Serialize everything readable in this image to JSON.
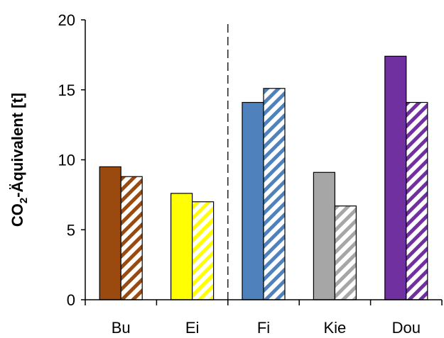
{
  "chart_data": {
    "type": "bar",
    "title": "",
    "xlabel": "",
    "ylabel": {
      "main": "CO",
      "subscript": "2",
      "rest": "-Äquivalent [t]"
    },
    "ylim": [
      0,
      20
    ],
    "yticks": [
      0,
      5,
      10,
      15,
      20
    ],
    "grid": false,
    "legend": "none",
    "divider_after_category": 1,
    "categories": [
      "Bu",
      "Ei",
      "Fi",
      "Kie",
      "Dou"
    ],
    "colors": [
      "#9a4a0f",
      "#ffff00",
      "#4f81bd",
      "#a6a6a6",
      "#7030a0"
    ],
    "series": [
      {
        "style": "solid",
        "values": [
          9.5,
          7.6,
          14.1,
          9.1,
          17.4
        ]
      },
      {
        "style": "hatched",
        "values": [
          8.8,
          7.0,
          15.1,
          6.7,
          14.1
        ]
      }
    ]
  }
}
